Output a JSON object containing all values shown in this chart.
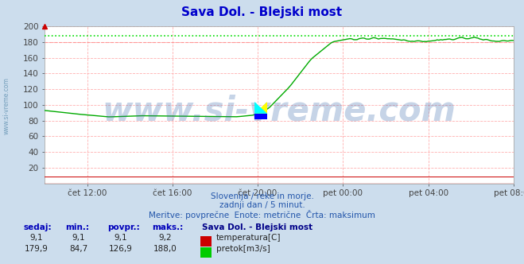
{
  "title": "Sava Dol. - Blejski most",
  "title_color": "#0000cc",
  "bg_color": "#ccdded",
  "plot_bg_color": "#ffffff",
  "grid_color": "#ffb0b0",
  "xmin": 0,
  "xmax": 22,
  "ymin": 0,
  "ymax": 200,
  "ytick_positions": [
    20,
    40,
    60,
    80,
    100,
    120,
    140,
    160,
    180,
    200
  ],
  "ytick_labels": [
    "20",
    "40",
    "60",
    "80",
    "100",
    "120",
    "140",
    "160",
    "180",
    "200"
  ],
  "xtick_positions": [
    2,
    6,
    10,
    14,
    18,
    22
  ],
  "xtick_labels": [
    "čet 12:00",
    "čet 16:00",
    "čet 20:00",
    "pet 00:00",
    "pet 04:00",
    "pet 08:00"
  ],
  "max_line_value": 188.0,
  "max_line_color": "#00dd00",
  "ref_line_value": 180.0,
  "ref_line_color": "#ff8888",
  "flow_color": "#00aa00",
  "temp_color": "#cc0000",
  "watermark": "www.si-vreme.com",
  "watermark_color": "#3366aa",
  "watermark_alpha": 0.28,
  "subtitle1": "Slovenija / reke in morje.",
  "subtitle2": "zadnji dan / 5 minut.",
  "subtitle3": "Meritve: povprečne  Enote: metrične  Črta: maksimum",
  "subtitle_color": "#2255aa",
  "legend_title": "Sava Dol. - Blejski most",
  "legend_title_color": "#000088",
  "legend_items": [
    {
      "label": "temperatura[C]",
      "color": "#cc0000"
    },
    {
      "label": "pretok[m3/s]",
      "color": "#00cc00"
    }
  ],
  "table_headers": [
    "sedaj:",
    "min.:",
    "povpr.:",
    "maks.:"
  ],
  "table_row1": [
    "9,1",
    "9,1",
    "9,1",
    "9,2"
  ],
  "table_row2": [
    "179,9",
    "84,7",
    "126,9",
    "188,0"
  ],
  "left_label": "www.si-vreme.com",
  "left_label_color": "#5588aa",
  "axis_arrow_color": "#cc3333",
  "axis_top_marker_color": "#cc0000"
}
